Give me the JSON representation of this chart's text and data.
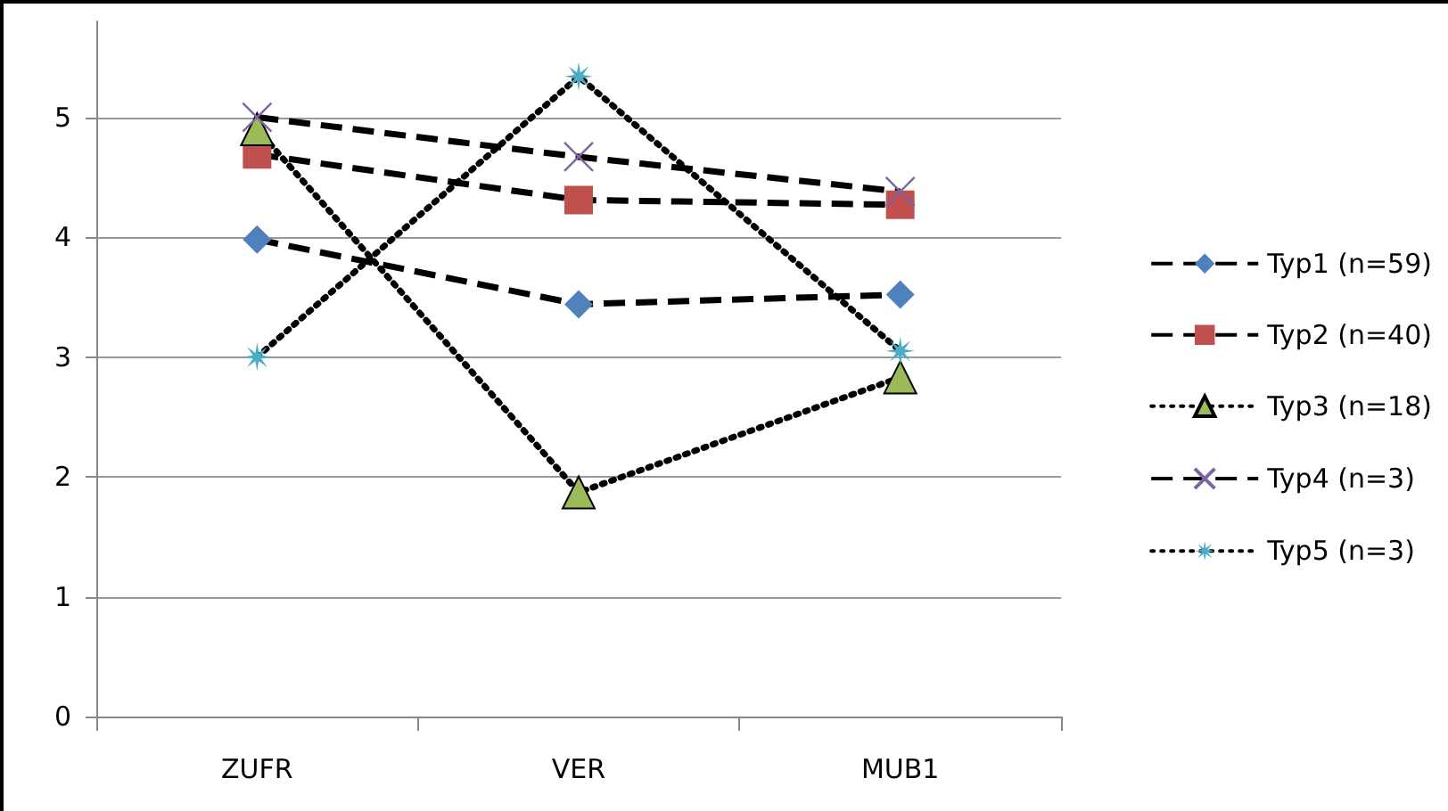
{
  "chart_data": {
    "type": "line",
    "categories": [
      "ZUFR",
      "VER",
      "MUB1"
    ],
    "series": [
      {
        "name": "Typ1 (n=59)",
        "color": "#4f81bd",
        "marker": "diamond",
        "line_style": "dashed",
        "values": [
          3.98,
          3.44,
          3.52
        ]
      },
      {
        "name": "Typ2 (n=40)",
        "color": "#c0504d",
        "marker": "square",
        "line_style": "dashed",
        "values": [
          4.69,
          4.31,
          4.27
        ]
      },
      {
        "name": "Typ3 (n=18)",
        "color": "#9bbb59",
        "marker": "triangle",
        "line_style": "dotted",
        "values": [
          4.9,
          1.87,
          2.83
        ]
      },
      {
        "name": "Typ4 (n=3)",
        "color": "#8064a2",
        "marker": "cross",
        "line_style": "dashed",
        "values": [
          5.0,
          4.67,
          4.38
        ]
      },
      {
        "name": "Typ5 (n=3)",
        "color": "#4bacc6",
        "marker": "star",
        "line_style": "dotted",
        "values": [
          3.0,
          5.34,
          3.05
        ]
      }
    ],
    "ylim": [
      0,
      5.8
    ],
    "yticks": [
      0,
      1,
      2,
      3,
      4,
      5
    ],
    "grid": "y",
    "legend": "right"
  }
}
